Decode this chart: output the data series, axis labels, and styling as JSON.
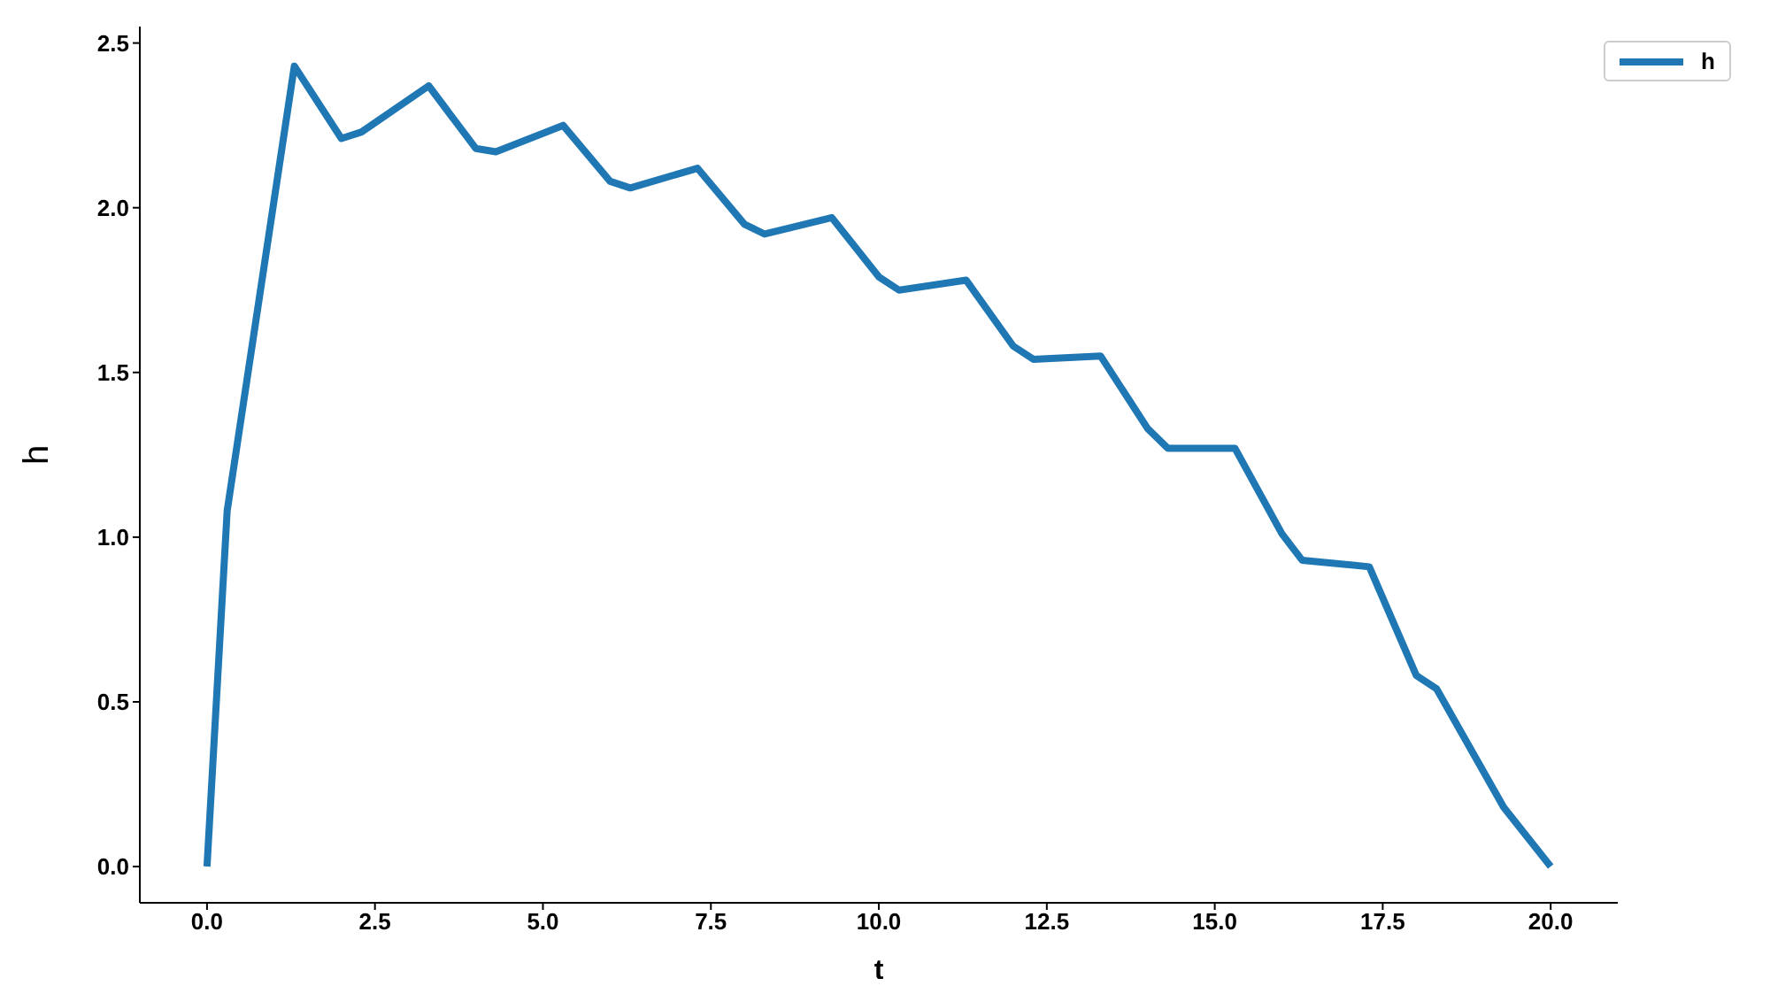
{
  "chart_data": {
    "type": "line",
    "xlabel": "t",
    "ylabel": "h",
    "legend": "top right",
    "line_style": "solid",
    "marker": "none",
    "grid": false,
    "xlim": [
      -1,
      21
    ],
    "ylim": [
      -0.11,
      2.55
    ],
    "xticks": [
      {
        "value": 0,
        "label": "0.0"
      },
      {
        "value": 2.5,
        "label": "2.5"
      },
      {
        "value": 5,
        "label": "5.0"
      },
      {
        "value": 7.5,
        "label": "7.5"
      },
      {
        "value": 10,
        "label": "10.0"
      },
      {
        "value": 12.5,
        "label": "12.5"
      },
      {
        "value": 15,
        "label": "15.0"
      },
      {
        "value": 17.5,
        "label": "17.5"
      },
      {
        "value": 20,
        "label": "20.0"
      }
    ],
    "yticks": [
      {
        "value": 0,
        "label": "0.0"
      },
      {
        "value": 0.5,
        "label": "0.5"
      },
      {
        "value": 1,
        "label": "1.0"
      },
      {
        "value": 1.5,
        "label": "1.5"
      },
      {
        "value": 2,
        "label": "2.0"
      },
      {
        "value": 2.5,
        "label": "2.5"
      }
    ],
    "x": [
      0,
      0.3,
      1.3,
      2.0,
      2.3,
      3.3,
      4.0,
      4.3,
      5.3,
      6.0,
      6.3,
      7.3,
      8.0,
      8.3,
      9.3,
      10.0,
      10.3,
      11.3,
      12.0,
      12.3,
      13.3,
      14.0,
      14.3,
      15.3,
      16.0,
      16.3,
      17.3,
      18.0,
      18.3,
      19.3,
      20.0
    ],
    "series": [
      {
        "name": "h",
        "color": "#1f77b4",
        "values": [
          0,
          1.08,
          2.43,
          2.21,
          2.23,
          2.37,
          2.18,
          2.17,
          2.25,
          2.08,
          2.06,
          2.12,
          1.95,
          1.92,
          1.97,
          1.79,
          1.75,
          1.78,
          1.58,
          1.54,
          1.55,
          1.33,
          1.27,
          1.27,
          1.01,
          0.93,
          0.91,
          0.58,
          0.54,
          0.18,
          0
        ]
      }
    ]
  }
}
